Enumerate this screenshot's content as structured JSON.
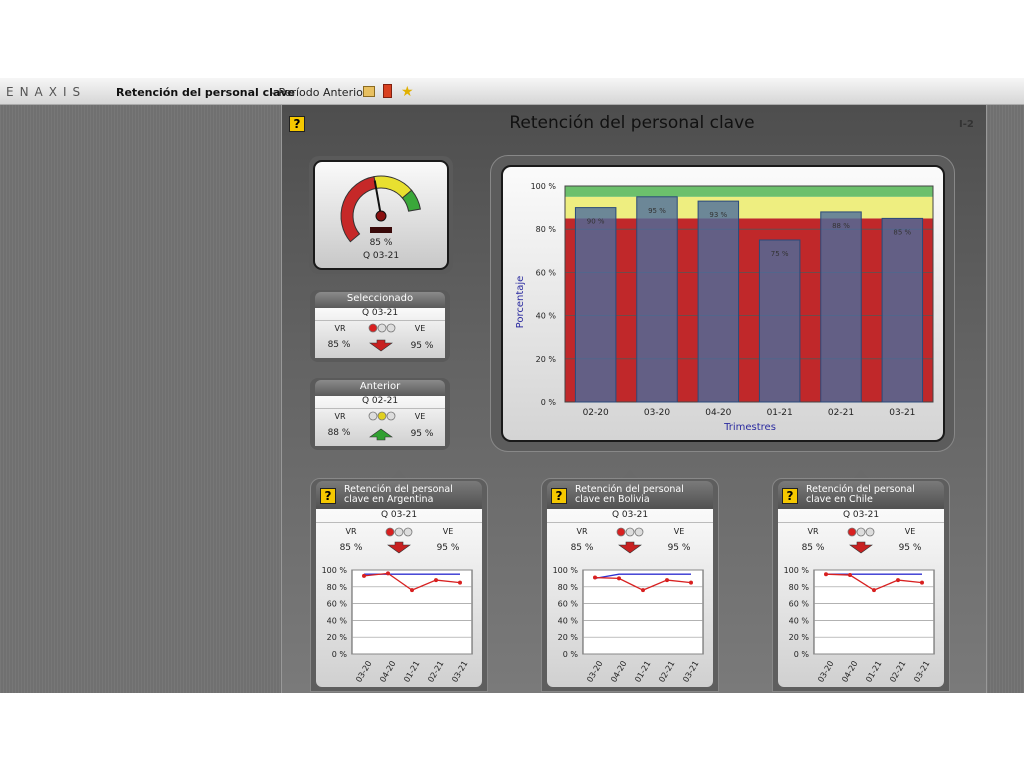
{
  "app": {
    "brand": "ENAXIS",
    "title": "Retención del personal clave",
    "subtitle": "- Período Anterior"
  },
  "panel": {
    "help": "?",
    "title": "Retención del personal clave",
    "code": "I-2"
  },
  "gauge": {
    "value": 85,
    "value_label": "85 %",
    "period": "Q 03-21",
    "range": [
      65,
      100
    ],
    "bands": [
      85,
      95
    ],
    "colors": [
      "#c62828",
      "#e8e030",
      "#3aa83a"
    ]
  },
  "cards": [
    {
      "title": "Seleccionado",
      "period": "Q 03-21",
      "vr_label": "VR",
      "ve_label": "VE",
      "vr": "85 %",
      "ve": "95 %",
      "light": "red",
      "trend": "down"
    },
    {
      "title": "Anterior",
      "period": "Q 02-21",
      "vr_label": "VR",
      "ve_label": "VE",
      "vr": "88 %",
      "ve": "95 %",
      "light": "yellow",
      "trend": "up"
    }
  ],
  "chart_data": {
    "type": "bar",
    "categories": [
      "02-20",
      "03-20",
      "04-20",
      "01-21",
      "02-21",
      "03-21"
    ],
    "values": [
      90,
      95,
      93,
      75,
      88,
      85
    ],
    "value_labels": [
      "90 %",
      "95 %",
      "93 %",
      "75 %",
      "88 %",
      "85 %"
    ],
    "color": "#4b6d9c",
    "ylim": [
      0,
      100
    ],
    "yticks": [
      {
        "value": 0,
        "label": "0 %"
      },
      {
        "value": 20,
        "label": "20 %"
      },
      {
        "value": 40,
        "label": "40 %"
      },
      {
        "value": 60,
        "label": "60 %"
      },
      {
        "value": 80,
        "label": "80 %"
      },
      {
        "value": 100,
        "label": "100 %"
      }
    ],
    "bands": [
      85,
      95
    ],
    "band_colors": [
      "#c0282a",
      "#eeee80",
      "#6cc06c"
    ],
    "ylabel": "Porcentaje",
    "xlabel": "Trimestres",
    "grid": true
  },
  "regions": [
    {
      "help": "?",
      "title": "Retención del personal clave en Argentina",
      "period": "Q 03-21",
      "vr_label": "VR",
      "ve_label": "VE",
      "vr": "85 %",
      "ve": "95 %",
      "light": "red",
      "trend": "down",
      "chart": {
        "type": "line",
        "categories": [
          "03-20",
          "04-20",
          "01-21",
          "02-21",
          "03-21"
        ],
        "series": [
          {
            "color": "#d82020",
            "values": [
              93,
              96,
              76,
              88,
              85
            ]
          },
          {
            "color": "#3030d0",
            "values": [
              95,
              95,
              95,
              95,
              95
            ]
          }
        ],
        "ylim": [
          0,
          100
        ],
        "yticks": [
          {
            "value": 0,
            "label": "0 %"
          },
          {
            "value": 20,
            "label": "20 %"
          },
          {
            "value": 40,
            "label": "40 %"
          },
          {
            "value": 60,
            "label": "60 %"
          },
          {
            "value": 80,
            "label": "80 %"
          },
          {
            "value": 100,
            "label": "100 %"
          }
        ],
        "grid": true
      }
    },
    {
      "help": "?",
      "title": "Retención del personal clave en Bolivia",
      "period": "Q 03-21",
      "vr_label": "VR",
      "ve_label": "VE",
      "vr": "85 %",
      "ve": "95 %",
      "light": "red",
      "trend": "down",
      "chart": {
        "type": "line",
        "categories": [
          "03-20",
          "04-20",
          "01-21",
          "02-21",
          "03-21"
        ],
        "series": [
          {
            "color": "#d82020",
            "values": [
              91,
              90,
              76,
              88,
              85
            ]
          },
          {
            "color": "#3030d0",
            "values": [
              90,
              95,
              95,
              95,
              95
            ]
          }
        ],
        "ylim": [
          0,
          100
        ],
        "yticks": [
          {
            "value": 0,
            "label": "0 %"
          },
          {
            "value": 20,
            "label": "20 %"
          },
          {
            "value": 40,
            "label": "40 %"
          },
          {
            "value": 60,
            "label": "60 %"
          },
          {
            "value": 80,
            "label": "80 %"
          },
          {
            "value": 100,
            "label": "100 %"
          }
        ],
        "grid": true
      }
    },
    {
      "help": "?",
      "title": "Retención del personal clave en Chile",
      "period": "Q 03-21",
      "vr_label": "VR",
      "ve_label": "VE",
      "vr": "85 %",
      "ve": "95 %",
      "light": "red",
      "trend": "down",
      "chart": {
        "type": "line",
        "categories": [
          "03-20",
          "04-20",
          "01-21",
          "02-21",
          "03-21"
        ],
        "series": [
          {
            "color": "#d82020",
            "values": [
              95,
              94,
              76,
              88,
              85
            ]
          },
          {
            "color": "#3030d0",
            "values": [
              95,
              95,
              95,
              95,
              95
            ]
          }
        ],
        "ylim": [
          0,
          100
        ],
        "yticks": [
          {
            "value": 0,
            "label": "0 %"
          },
          {
            "value": 20,
            "label": "20 %"
          },
          {
            "value": 40,
            "label": "40 %"
          },
          {
            "value": 60,
            "label": "60 %"
          },
          {
            "value": 80,
            "label": "80 %"
          },
          {
            "value": 100,
            "label": "100 %"
          }
        ],
        "grid": true
      }
    }
  ]
}
